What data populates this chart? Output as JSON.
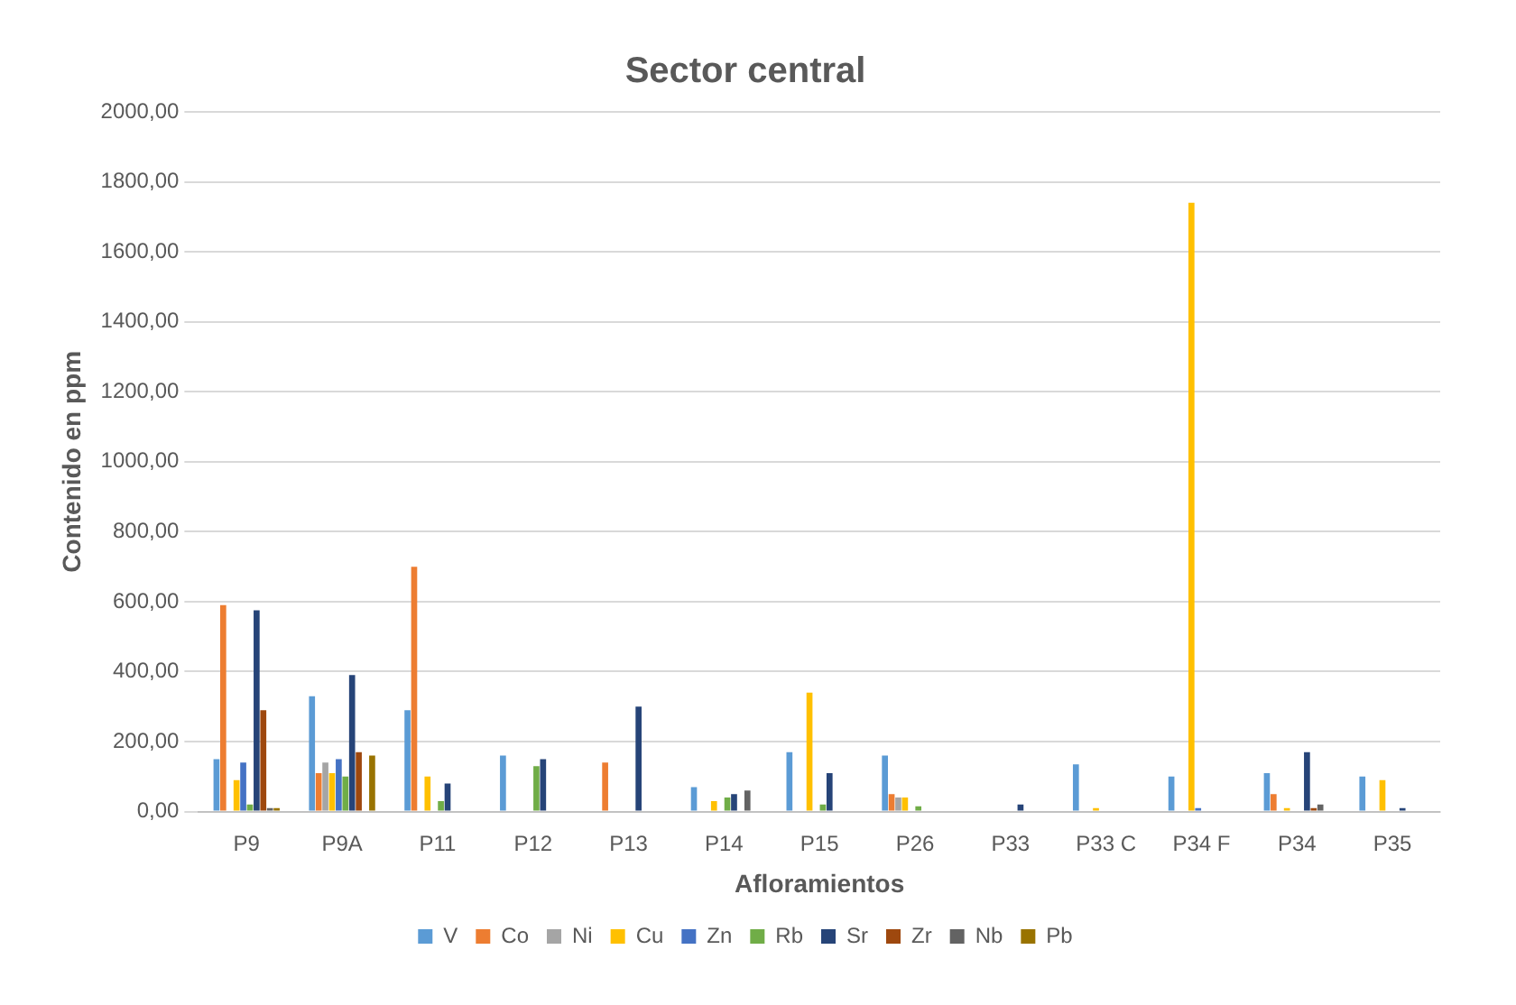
{
  "chart_data": {
    "type": "bar",
    "title": "Sector central",
    "xlabel": "Afloramientos",
    "ylabel": "Contenido en ppm",
    "categories": [
      "P9",
      "P9A",
      "P11",
      "P12",
      "P13",
      "P14",
      "P15",
      "P26",
      "P33",
      "P33 C",
      "P34 F",
      "P34",
      "P35"
    ],
    "series": [
      {
        "name": "V",
        "color": "#5b9bd5",
        "values": [
          150,
          330,
          290,
          160,
          0,
          70,
          170,
          160,
          0,
          135,
          100,
          110,
          100
        ]
      },
      {
        "name": "Co",
        "color": "#ed7d31",
        "values": [
          590,
          110,
          700,
          0,
          140,
          0,
          0,
          50,
          0,
          0,
          0,
          50,
          0
        ]
      },
      {
        "name": "Ni",
        "color": "#a5a5a5",
        "values": [
          null,
          140,
          0,
          0,
          0,
          0,
          0,
          40,
          0,
          0,
          0,
          0,
          0
        ]
      },
      {
        "name": "Cu",
        "color": "#ffc000",
        "values": [
          90,
          110,
          100,
          0,
          0,
          30,
          340,
          40,
          0,
          10,
          1740,
          10,
          90
        ]
      },
      {
        "name": "Zn",
        "color": "#4472c4",
        "values": [
          140,
          150,
          0,
          0,
          0,
          0,
          0,
          0,
          0,
          0,
          10,
          0,
          0
        ]
      },
      {
        "name": "Rb",
        "color": "#70ad47",
        "values": [
          20,
          100,
          30,
          130,
          0,
          40,
          20,
          15,
          0,
          0,
          0,
          0,
          0
        ]
      },
      {
        "name": "Sr",
        "color": "#264478",
        "values": [
          575,
          390,
          80,
          150,
          300,
          50,
          110,
          0,
          20,
          0,
          0,
          170,
          10
        ]
      },
      {
        "name": "Zr",
        "color": "#9e480e",
        "values": [
          290,
          170,
          0,
          0,
          0,
          0,
          0,
          0,
          0,
          0,
          0,
          10,
          0
        ]
      },
      {
        "name": "Nb",
        "color": "#636363",
        "values": [
          10,
          0,
          0,
          0,
          0,
          60,
          0,
          0,
          0,
          0,
          0,
          20,
          0
        ]
      },
      {
        "name": "Pb",
        "color": "#997300",
        "values": [
          10,
          160,
          0,
          0,
          0,
          0,
          0,
          0,
          0,
          0,
          0,
          0,
          0
        ]
      }
    ],
    "ylim": [
      0,
      2000
    ],
    "yticks": [
      {
        "value": 0,
        "label": "0,00"
      },
      {
        "value": 200,
        "label": "200,00"
      },
      {
        "value": 400,
        "label": "400,00"
      },
      {
        "value": 600,
        "label": "600,00"
      },
      {
        "value": 800,
        "label": "800,00"
      },
      {
        "value": 1000,
        "label": "1000,00"
      },
      {
        "value": 1200,
        "label": "1200,00"
      },
      {
        "value": 1400,
        "label": "1400,00"
      },
      {
        "value": 1600,
        "label": "1600,00"
      },
      {
        "value": 1800,
        "label": "1800,00"
      },
      {
        "value": 2000,
        "label": "2000,00"
      }
    ],
    "grid": "y",
    "legend": "bottom"
  }
}
